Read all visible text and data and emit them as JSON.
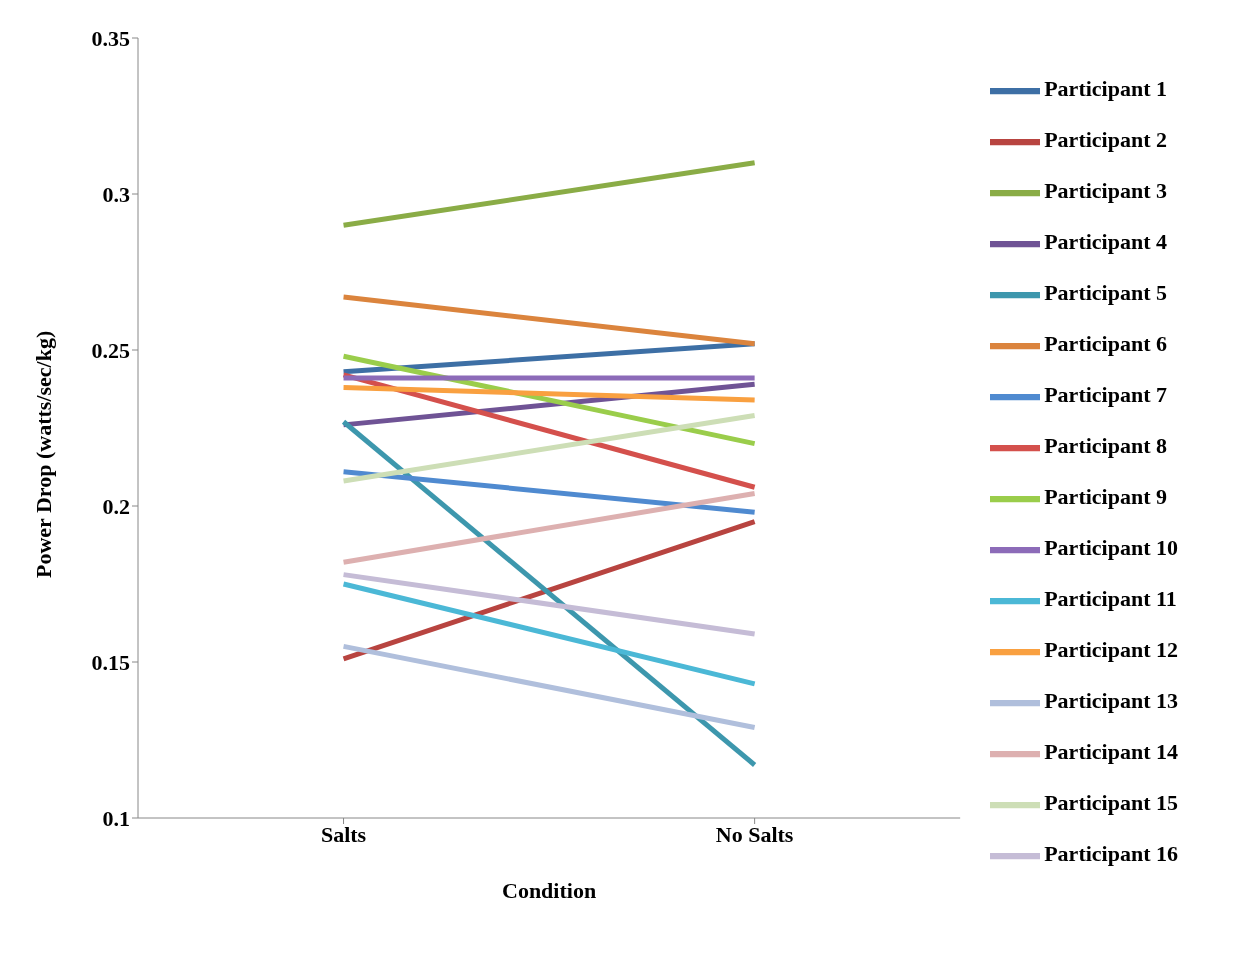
{
  "chart_data": {
    "type": "line",
    "xlabel": "Condition",
    "ylabel": "Power Drop (watts/sec/kg)",
    "categories": [
      "Salts",
      "No Salts"
    ],
    "ylim": [
      0.1,
      0.35
    ],
    "yticks": [
      0.1,
      0.15,
      0.2,
      0.25,
      0.3,
      0.35
    ],
    "grid": false,
    "legend": "right",
    "marker": "none",
    "line_style": "solid",
    "series": [
      {
        "name": "Participant 1",
        "color": "#3d6fa5",
        "values": [
          0.243,
          0.252
        ]
      },
      {
        "name": "Participant 2",
        "color": "#b84440",
        "values": [
          0.151,
          0.195
        ]
      },
      {
        "name": "Participant 3",
        "color": "#8aac46",
        "values": [
          0.29,
          0.31
        ]
      },
      {
        "name": "Participant 4",
        "color": "#6f5395",
        "values": [
          0.226,
          0.239
        ]
      },
      {
        "name": "Participant 5",
        "color": "#3d97ad",
        "values": [
          0.227,
          0.117
        ]
      },
      {
        "name": "Participant 6",
        "color": "#db843d",
        "values": [
          0.267,
          0.252
        ]
      },
      {
        "name": "Participant 7",
        "color": "#4f8ad0",
        "values": [
          0.211,
          0.198
        ]
      },
      {
        "name": "Participant 8",
        "color": "#d4504c",
        "values": [
          0.242,
          0.206
        ]
      },
      {
        "name": "Participant 9",
        "color": "#9acd4b",
        "values": [
          0.248,
          0.22
        ]
      },
      {
        "name": "Participant 10",
        "color": "#8c6bb8",
        "values": [
          0.241,
          0.241
        ]
      },
      {
        "name": "Participant 11",
        "color": "#4bb8d6",
        "values": [
          0.175,
          0.143
        ]
      },
      {
        "name": "Participant 12",
        "color": "#f9a040",
        "values": [
          0.238,
          0.234
        ]
      },
      {
        "name": "Participant 13",
        "color": "#b0bfdc",
        "values": [
          0.155,
          0.129
        ]
      },
      {
        "name": "Participant 14",
        "color": "#ddb0b0",
        "values": [
          0.182,
          0.204
        ]
      },
      {
        "name": "Participant 15",
        "color": "#cddeb6",
        "values": [
          0.208,
          0.229
        ]
      },
      {
        "name": "Participant 16",
        "color": "#c5bcd6",
        "values": [
          0.178,
          0.159
        ]
      }
    ]
  }
}
